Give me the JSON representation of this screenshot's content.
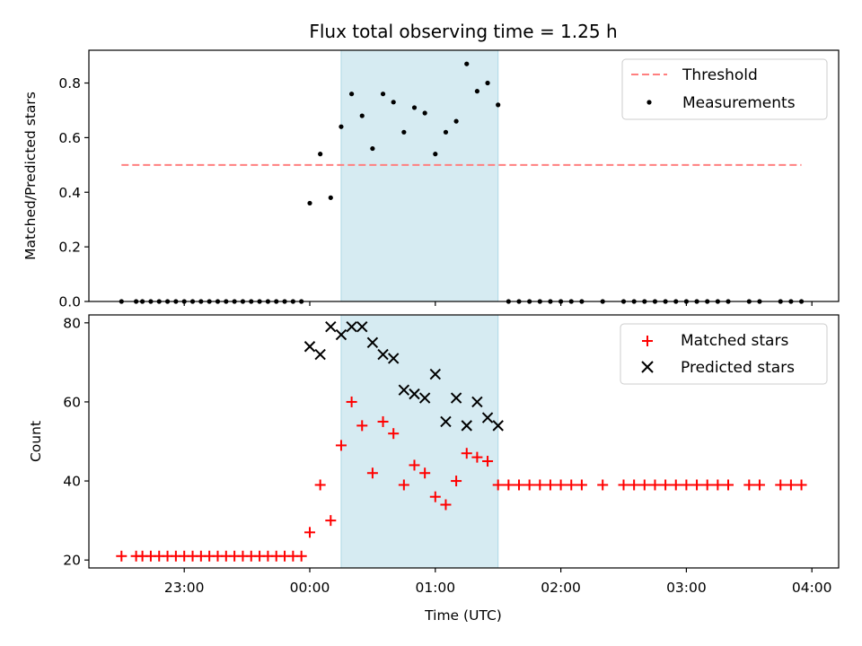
{
  "chart_data": [
    {
      "type": "scatter",
      "title": "Flux total observing time = 1.25 h",
      "xlabel": "",
      "ylabel": "Matched/Predicted stars",
      "ylim": [
        0,
        0.92
      ],
      "yticks": [
        "0.0",
        "0.2",
        "0.4",
        "0.6",
        "0.8"
      ],
      "shaded_region": {
        "start": "00:15",
        "end": "01:30",
        "color": "#add8e6"
      },
      "legend": {
        "placement": "top-right",
        "entries": [
          "Threshold",
          "Measurements"
        ]
      },
      "series": [
        {
          "name": "Threshold",
          "style": "dashed-line",
          "color": "#ff7f7f",
          "x": [
            "22:30",
            "03:55"
          ],
          "y": [
            0.5,
            0.5
          ]
        },
        {
          "name": "Measurements",
          "style": "points",
          "color": "#000000",
          "x": [
            "22:30",
            "22:37",
            "22:40",
            "22:44",
            "22:48",
            "22:52",
            "22:56",
            "23:00",
            "23:04",
            "23:08",
            "23:12",
            "23:16",
            "23:20",
            "23:24",
            "23:28",
            "23:32",
            "23:36",
            "23:40",
            "23:44",
            "23:48",
            "23:52",
            "23:56",
            "00:00",
            "00:05",
            "00:10",
            "00:15",
            "00:20",
            "00:25",
            "00:30",
            "00:35",
            "00:40",
            "00:45",
            "00:50",
            "00:55",
            "01:00",
            "01:05",
            "01:10",
            "01:15",
            "01:20",
            "01:25",
            "01:30",
            "01:35",
            "01:40",
            "01:45",
            "01:50",
            "01:55",
            "02:00",
            "02:05",
            "02:10",
            "02:20",
            "02:30",
            "02:35",
            "02:40",
            "02:45",
            "02:50",
            "02:55",
            "03:00",
            "03:05",
            "03:10",
            "03:15",
            "03:20",
            "03:30",
            "03:35",
            "03:45",
            "03:50",
            "03:55"
          ],
          "y": [
            0,
            0,
            0,
            0,
            0,
            0,
            0,
            0,
            0,
            0,
            0,
            0,
            0,
            0,
            0,
            0,
            0,
            0,
            0,
            0,
            0,
            0,
            0.36,
            0.54,
            0.38,
            0.64,
            0.76,
            0.68,
            0.56,
            0.76,
            0.73,
            0.62,
            0.71,
            0.69,
            0.54,
            0.62,
            0.66,
            0.87,
            0.77,
            0.8,
            0.72,
            0,
            0,
            0,
            0,
            0,
            0,
            0,
            0,
            0,
            0,
            0,
            0,
            0,
            0,
            0,
            0,
            0,
            0,
            0,
            0,
            0,
            0,
            0,
            0,
            0
          ]
        }
      ]
    },
    {
      "type": "scatter",
      "title": "",
      "xlabel": "Time (UTC)",
      "ylabel": "Count",
      "ylim": [
        18,
        82
      ],
      "yticks": [
        "20",
        "40",
        "60",
        "80"
      ],
      "xticks": [
        "23:00",
        "00:00",
        "01:00",
        "02:00",
        "03:00",
        "04:00"
      ],
      "shaded_region": {
        "start": "00:15",
        "end": "01:30",
        "color": "#add8e6"
      },
      "legend": {
        "placement": "top-right",
        "entries": [
          "Matched stars",
          "Predicted stars"
        ]
      },
      "series": [
        {
          "name": "Matched stars",
          "marker": "plus",
          "color": "#ff0000",
          "x": [
            "22:30",
            "22:37",
            "22:40",
            "22:44",
            "22:48",
            "22:52",
            "22:56",
            "23:00",
            "23:04",
            "23:08",
            "23:12",
            "23:16",
            "23:20",
            "23:24",
            "23:28",
            "23:32",
            "23:36",
            "23:40",
            "23:44",
            "23:48",
            "23:52",
            "23:56",
            "00:00",
            "00:05",
            "00:10",
            "00:15",
            "00:20",
            "00:25",
            "00:30",
            "00:35",
            "00:40",
            "00:45",
            "00:50",
            "00:55",
            "01:00",
            "01:05",
            "01:10",
            "01:15",
            "01:20",
            "01:25",
            "01:30",
            "01:35",
            "01:40",
            "01:45",
            "01:50",
            "01:55",
            "02:00",
            "02:05",
            "02:10",
            "02:20",
            "02:30",
            "02:35",
            "02:40",
            "02:45",
            "02:50",
            "02:55",
            "03:00",
            "03:05",
            "03:10",
            "03:15",
            "03:20",
            "03:30",
            "03:35",
            "03:45",
            "03:50",
            "03:55"
          ],
          "y": [
            21,
            21,
            21,
            21,
            21,
            21,
            21,
            21,
            21,
            21,
            21,
            21,
            21,
            21,
            21,
            21,
            21,
            21,
            21,
            21,
            21,
            21,
            27,
            39,
            30,
            49,
            60,
            54,
            42,
            55,
            52,
            39,
            44,
            42,
            36,
            34,
            40,
            47,
            46,
            45,
            39,
            39,
            39,
            39,
            39,
            39,
            39,
            39,
            39,
            39,
            39,
            39,
            39,
            39,
            39,
            39,
            39,
            39,
            39,
            39,
            39,
            39,
            39,
            39,
            39,
            39
          ]
        },
        {
          "name": "Predicted stars",
          "marker": "x",
          "color": "#000000",
          "x": [
            "00:00",
            "00:05",
            "00:10",
            "00:15",
            "00:20",
            "00:25",
            "00:30",
            "00:35",
            "00:40",
            "00:45",
            "00:50",
            "00:55",
            "01:00",
            "01:05",
            "01:10",
            "01:15",
            "01:20",
            "01:25",
            "01:30"
          ],
          "y": [
            74,
            72,
            79,
            77,
            79,
            79,
            75,
            72,
            71,
            63,
            62,
            61,
            67,
            55,
            61,
            54,
            60,
            56,
            54
          ]
        }
      ]
    }
  ]
}
